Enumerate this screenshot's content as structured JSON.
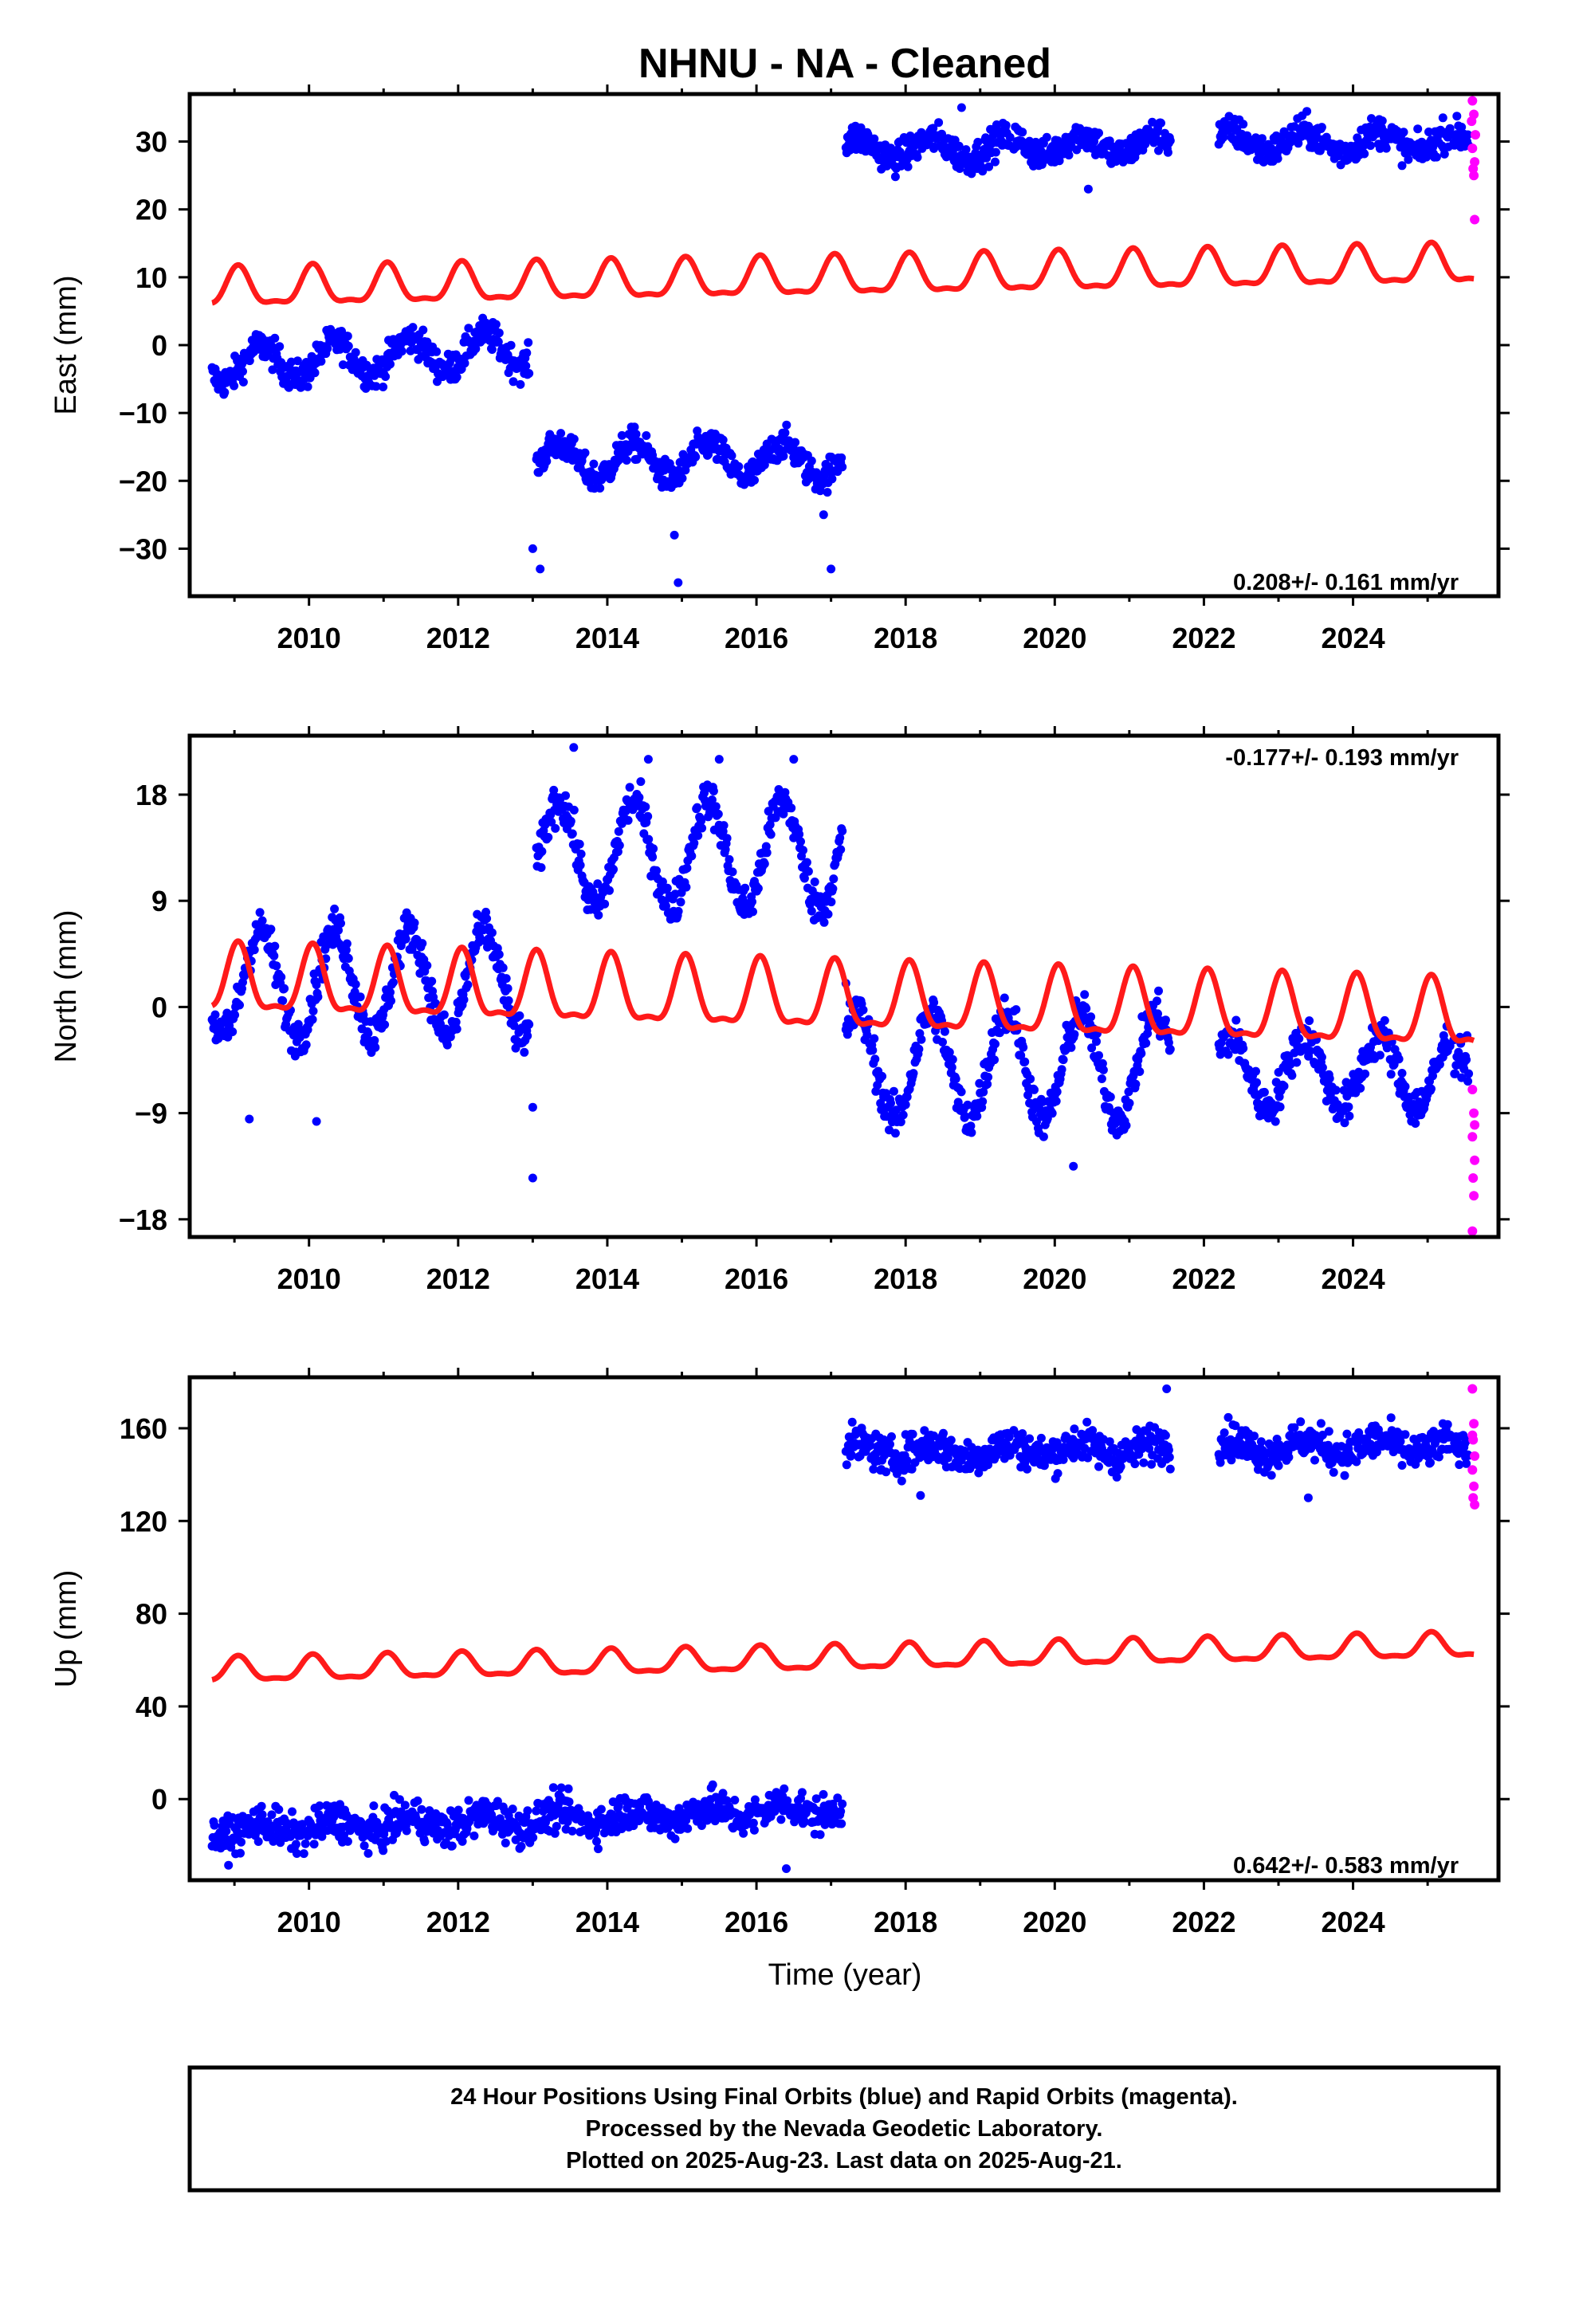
{
  "title": "NHNU  - NA - Cleaned",
  "xlabel": "Time (year)",
  "colors": {
    "final": "#0000ff",
    "rapid": "#ff00ff",
    "model": "#ff1a1a",
    "frame": "#000000"
  },
  "footer": {
    "line1": "24 Hour Positions Using Final Orbits (blue) and Rapid Orbits (magenta).",
    "line2": "Processed by the Nevada Geodetic Laboratory.",
    "line3": "Plotted on 2025-Aug-23. Last data on 2025-Aug-21."
  },
  "chart_data": [
    {
      "type": "scatter",
      "component": "East",
      "ylabel": "East (mm)",
      "rate": "0.208+/- 0.161 mm/yr",
      "xlim": [
        2008.4,
        2025.95
      ],
      "ylim": [
        -37,
        37
      ],
      "xticks": [
        2010,
        2012,
        2014,
        2016,
        2018,
        2020,
        2022,
        2024
      ],
      "yticks": [
        30,
        20,
        10,
        0,
        -10,
        -20,
        -30
      ],
      "series": [
        {
          "role": "final",
          "segments": [
            {
              "x": [
                2008.7,
                2012.95
              ],
              "level": -3,
              "amp": 2.5,
              "noise": 4,
              "drift": 0.6
            },
            {
              "x": [
                2013.05,
                2017.15
              ],
              "level": -17,
              "amp": 2.5,
              "noise": 4,
              "drift": 0
            },
            {
              "x": [
                2017.2,
                2019.4
              ],
              "level": 29,
              "amp": 1.5,
              "noise": 4,
              "drift": 0
            },
            {
              "x": [
                2019.45,
                2021.55
              ],
              "level": 29.5,
              "amp": 1.5,
              "noise": 4,
              "drift": 0
            },
            {
              "x": [
                2022.2,
                2025.3
              ],
              "level": 30,
              "amp": 1.5,
              "noise": 4,
              "drift": 0
            },
            {
              "x": [
                2025.35,
                2025.55
              ],
              "level": 30,
              "amp": 1,
              "noise": 4,
              "drift": 0
            }
          ],
          "outliers": [
            [
              2013.0,
              -30
            ],
            [
              2013.1,
              -33
            ],
            [
              2014.95,
              -35
            ],
            [
              2014.9,
              -28
            ],
            [
              2016.9,
              -25
            ],
            [
              2017.0,
              -33
            ],
            [
              2018.75,
              35
            ],
            [
              2020.45,
              23
            ]
          ]
        },
        {
          "role": "rapid",
          "points": [
            [
              2025.6,
              36
            ],
            [
              2025.62,
              34
            ],
            [
              2025.64,
              31
            ],
            [
              2025.6,
              29
            ],
            [
              2025.63,
              27
            ],
            [
              2025.61,
              26
            ],
            [
              2025.62,
              25
            ],
            [
              2025.63,
              18.5
            ],
            [
              2025.59,
              33
            ]
          ]
        },
        {
          "role": "model",
          "offset": 8.1,
          "trend": 0.208,
          "t0": 2008.7,
          "amp": 2.7,
          "phase": 0.35
        }
      ]
    },
    {
      "type": "scatter",
      "component": "North",
      "ylabel": "North (mm)",
      "rate": "-0.177+/- 0.193 mm/yr",
      "xlim": [
        2008.4,
        2025.95
      ],
      "ylim": [
        -19.5,
        23
      ],
      "xticks": [
        2010,
        2012,
        2014,
        2016,
        2018,
        2020,
        2022,
        2024
      ],
      "yticks": [
        18,
        9,
        0,
        -9,
        -18
      ],
      "series": [
        {
          "role": "final",
          "segments": [
            {
              "x": [
                2008.7,
                2012.95
              ],
              "level": 2,
              "amp": 4.5,
              "noise": 3,
              "drift": 0
            },
            {
              "x": [
                2013.05,
                2017.15
              ],
              "level": 13,
              "amp": 4.5,
              "noise": 3,
              "drift": 0
            },
            {
              "x": [
                2017.2,
                2019.4
              ],
              "level": -5,
              "amp": 4.5,
              "noise": 3,
              "drift": 0
            },
            {
              "x": [
                2019.45,
                2021.55
              ],
              "level": -5,
              "amp": 4.5,
              "noise": 3,
              "drift": 0
            },
            {
              "x": [
                2022.2,
                2025.3
              ],
              "level": -5.5,
              "amp": 3,
              "noise": 3,
              "drift": 0
            },
            {
              "x": [
                2025.35,
                2025.55
              ],
              "level": -5,
              "amp": 1,
              "noise": 3,
              "drift": 0
            }
          ],
          "outliers": [
            [
              2009.2,
              -9.5
            ],
            [
              2010.1,
              -9.7
            ],
            [
              2013.0,
              -14.5
            ],
            [
              2013.55,
              22
            ],
            [
              2020.25,
              -13.5
            ],
            [
              2016.5,
              21
            ],
            [
              2014.55,
              21
            ],
            [
              2015.5,
              21
            ],
            [
              2013.0,
              -8.5
            ],
            [
              2017.2,
              2
            ]
          ]
        },
        {
          "role": "rapid",
          "points": [
            [
              2025.6,
              -7
            ],
            [
              2025.62,
              -9
            ],
            [
              2025.6,
              -11
            ],
            [
              2025.63,
              -13
            ],
            [
              2025.61,
              -14.5
            ],
            [
              2025.62,
              -16
            ],
            [
              2025.6,
              -19
            ],
            [
              2025.63,
              -10
            ]
          ]
        },
        {
          "role": "model",
          "offset": 2.0,
          "trend": -0.177,
          "t0": 2008.7,
          "amp": 2.7,
          "phase": 0.35
        }
      ]
    },
    {
      "type": "scatter",
      "component": "Up",
      "ylabel": "Up (mm)",
      "rate": "0.642+/- 0.583 mm/yr",
      "xlim": [
        2008.4,
        2025.95
      ],
      "ylim": [
        -35,
        182
      ],
      "xticks": [
        2010,
        2012,
        2014,
        2016,
        2018,
        2020,
        2022,
        2024
      ],
      "yticks": [
        160,
        120,
        80,
        40,
        0
      ],
      "series": [
        {
          "role": "final",
          "segments": [
            {
              "x": [
                2008.7,
                2017.15
              ],
              "level": -14,
              "amp": 3,
              "noise": 14,
              "drift": 1.2
            },
            {
              "x": [
                2017.2,
                2019.4
              ],
              "level": 150,
              "amp": 3,
              "noise": 14,
              "drift": 0
            },
            {
              "x": [
                2019.45,
                2021.55
              ],
              "level": 151,
              "amp": 3,
              "noise": 14,
              "drift": 0
            },
            {
              "x": [
                2022.2,
                2025.3
              ],
              "level": 152,
              "amp": 3,
              "noise": 14,
              "drift": 0
            },
            {
              "x": [
                2025.35,
                2025.55
              ],
              "level": 150,
              "amp": 2,
              "noise": 10,
              "drift": 0
            }
          ],
          "outliers": [
            [
              2016.4,
              -30
            ],
            [
              2021.5,
              177
            ],
            [
              2018.2,
              131
            ],
            [
              2023.4,
              130
            ]
          ]
        },
        {
          "role": "rapid",
          "points": [
            [
              2025.6,
              177
            ],
            [
              2025.62,
              162
            ],
            [
              2025.61,
              155
            ],
            [
              2025.63,
              148
            ],
            [
              2025.6,
              142
            ],
            [
              2025.62,
              135
            ],
            [
              2025.61,
              130
            ],
            [
              2025.63,
              127
            ],
            [
              2025.6,
              157
            ]
          ]
        },
        {
          "role": "model",
          "offset": 55,
          "trend": 0.642,
          "t0": 2008.7,
          "amp": 5,
          "phase": 0.35
        }
      ]
    }
  ]
}
